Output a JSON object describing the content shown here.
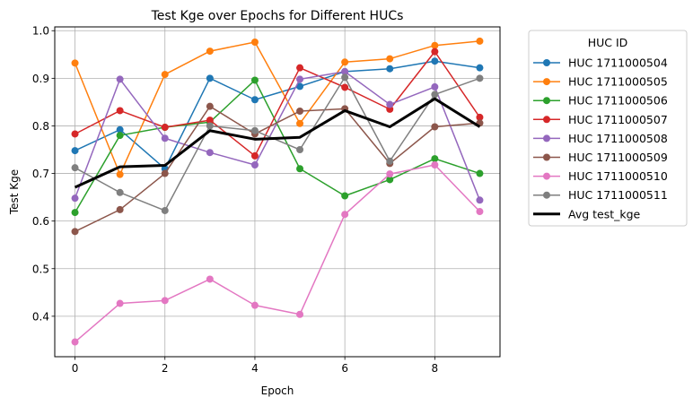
{
  "chart_data": {
    "type": "line",
    "title": "Test Kge over Epochs for Different HUCs",
    "xlabel": "Epoch",
    "ylabel": "Test Kge",
    "xlim": [
      -0.45,
      9.45
    ],
    "ylim": [
      0.315,
      1.008
    ],
    "x_ticks": [
      0,
      2,
      4,
      6,
      8
    ],
    "y_ticks": [
      0.4,
      0.5,
      0.6,
      0.7,
      0.8,
      0.9,
      1.0
    ],
    "y_tick_labels": [
      "0.4",
      "0.5",
      "0.6",
      "0.7",
      "0.8",
      "0.9",
      "1.0"
    ],
    "grid": true,
    "legend_title": "HUC ID",
    "legend_position": "outside right, top",
    "x": [
      0,
      1,
      2,
      3,
      4,
      5,
      6,
      7,
      8,
      9
    ],
    "series": [
      {
        "name": "HUC 1711000504",
        "color": "#1f77b4",
        "values": [
          0.748,
          0.792,
          0.71,
          0.9,
          0.855,
          0.883,
          0.914,
          0.92,
          0.936,
          0.922
        ]
      },
      {
        "name": "HUC 1711000505",
        "color": "#ff7f0e",
        "values": [
          0.932,
          0.698,
          0.908,
          0.957,
          0.976,
          0.805,
          0.934,
          0.941,
          0.969,
          0.978
        ]
      },
      {
        "name": "HUC 1711000506",
        "color": "#2ca02c",
        "values": [
          0.618,
          0.78,
          0.797,
          0.808,
          0.896,
          0.71,
          0.653,
          0.687,
          0.731,
          0.7
        ]
      },
      {
        "name": "HUC 1711000507",
        "color": "#d62728",
        "values": [
          0.783,
          0.832,
          0.797,
          0.812,
          0.737,
          0.922,
          0.881,
          0.835,
          0.956,
          0.818
        ]
      },
      {
        "name": "HUC 1711000508",
        "color": "#9467bd",
        "values": [
          0.648,
          0.898,
          0.774,
          0.744,
          0.718,
          0.898,
          0.914,
          0.845,
          0.882,
          0.644
        ]
      },
      {
        "name": "HUC 1711000509",
        "color": "#8c564b",
        "values": [
          0.578,
          0.624,
          0.7,
          0.841,
          0.783,
          0.831,
          0.836,
          0.721,
          0.798,
          0.806
        ]
      },
      {
        "name": "HUC 1711000510",
        "color": "#e377c2",
        "values": [
          0.346,
          0.427,
          0.433,
          0.478,
          0.423,
          0.404,
          0.614,
          0.699,
          0.718,
          0.62
        ]
      },
      {
        "name": "HUC 1711000511",
        "color": "#7f7f7f",
        "values": [
          0.712,
          0.66,
          0.622,
          0.8,
          0.79,
          0.75,
          0.902,
          0.726,
          0.866,
          0.9
        ]
      }
    ],
    "average": {
      "name": "Avg test_kge",
      "color": "#000000",
      "values": [
        0.671,
        0.714,
        0.717,
        0.79,
        0.772,
        0.776,
        0.832,
        0.798,
        0.857,
        0.798
      ]
    }
  }
}
